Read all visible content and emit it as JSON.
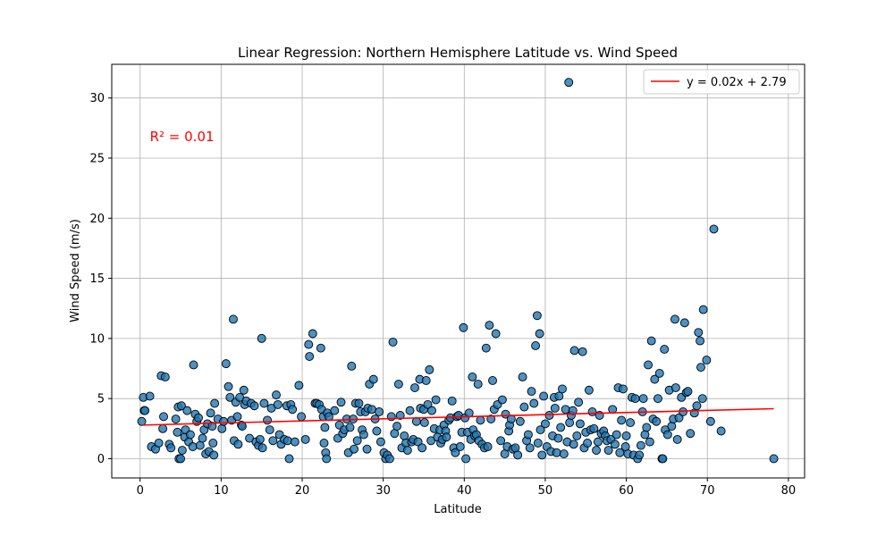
{
  "chart_data": {
    "type": "scatter",
    "title": "Linear Regression: Northern Hemisphere Latitude vs. Wind Speed",
    "xlabel": "Latitude",
    "ylabel": "Wind Speed (m/s)",
    "xlim": [
      -3.5,
      82
    ],
    "ylim": [
      -1.6,
      32.8
    ],
    "xticks": [
      0,
      10,
      20,
      30,
      40,
      50,
      60,
      70,
      80
    ],
    "yticks": [
      0,
      5,
      10,
      15,
      20,
      25,
      30
    ],
    "grid": true,
    "legend": {
      "position": "top-right",
      "entries": [
        "y = 0.02x + 2.79"
      ]
    },
    "annotation": {
      "text": "R² = 0.01",
      "x": 1.2,
      "y": 26.4,
      "color": "#ff0000"
    },
    "regression": {
      "slope": 0.0175,
      "intercept": 2.79,
      "x_range": [
        0.2,
        78.2
      ],
      "color": "#ff0000"
    },
    "colors": {
      "point_fill": "#1f77b4",
      "point_edge": "#000000",
      "line": "#ff0000",
      "grid": "#b0b0b0"
    },
    "points": [
      [
        0.2,
        3.1
      ],
      [
        0.4,
        5.1
      ],
      [
        0.5,
        4.0
      ],
      [
        0.6,
        4.0
      ],
      [
        1.2,
        5.2
      ],
      [
        1.4,
        1.0
      ],
      [
        1.9,
        0.8
      ],
      [
        2.3,
        1.3
      ],
      [
        2.6,
        6.9
      ],
      [
        2.8,
        2.5
      ],
      [
        2.9,
        3.5
      ],
      [
        3.1,
        6.8
      ],
      [
        3.6,
        1.2
      ],
      [
        3.8,
        0.9
      ],
      [
        4.4,
        3.3
      ],
      [
        4.6,
        2.2
      ],
      [
        4.7,
        4.3
      ],
      [
        4.8,
        0.0
      ],
      [
        5.0,
        0.0
      ],
      [
        5.1,
        4.4
      ],
      [
        5.2,
        0.7
      ],
      [
        5.5,
        1.8
      ],
      [
        5.6,
        2.4
      ],
      [
        5.8,
        4.0
      ],
      [
        6.0,
        1.4
      ],
      [
        6.2,
        2.0
      ],
      [
        6.5,
        1.0
      ],
      [
        6.6,
        7.8
      ],
      [
        6.8,
        3.7
      ],
      [
        7.0,
        3.1
      ],
      [
        7.2,
        3.4
      ],
      [
        7.4,
        1.1
      ],
      [
        7.7,
        1.7
      ],
      [
        7.9,
        2.4
      ],
      [
        8.1,
        0.4
      ],
      [
        8.3,
        2.9
      ],
      [
        8.5,
        0.6
      ],
      [
        8.7,
        3.8
      ],
      [
        8.9,
        2.7
      ],
      [
        9.0,
        1.3
      ],
      [
        9.1,
        0.3
      ],
      [
        9.2,
        4.6
      ],
      [
        9.6,
        3.3
      ],
      [
        10.1,
        2.5
      ],
      [
        10.3,
        3.1
      ],
      [
        10.6,
        7.9
      ],
      [
        10.9,
        6.0
      ],
      [
        11.1,
        5.1
      ],
      [
        11.3,
        3.2
      ],
      [
        11.5,
        11.6
      ],
      [
        11.6,
        1.5
      ],
      [
        11.8,
        4.7
      ],
      [
        12.0,
        3.5
      ],
      [
        12.1,
        1.2
      ],
      [
        12.3,
        5.1
      ],
      [
        12.5,
        2.8
      ],
      [
        12.6,
        2.7
      ],
      [
        12.8,
        5.7
      ],
      [
        12.9,
        4.5
      ],
      [
        13.1,
        4.8
      ],
      [
        13.5,
        1.7
      ],
      [
        13.7,
        4.6
      ],
      [
        14.1,
        4.4
      ],
      [
        14.3,
        1.4
      ],
      [
        14.6,
        1.1
      ],
      [
        14.8,
        1.6
      ],
      [
        15.0,
        10.0
      ],
      [
        15.1,
        0.9
      ],
      [
        15.3,
        4.6
      ],
      [
        15.7,
        3.2
      ],
      [
        16.0,
        2.4
      ],
      [
        16.2,
        4.2
      ],
      [
        16.4,
        1.5
      ],
      [
        16.8,
        5.3
      ],
      [
        17.0,
        4.5
      ],
      [
        17.2,
        2.0
      ],
      [
        17.4,
        1.2
      ],
      [
        17.8,
        1.6
      ],
      [
        18.1,
        4.4
      ],
      [
        18.2,
        1.5
      ],
      [
        18.4,
        0.0
      ],
      [
        18.6,
        4.5
      ],
      [
        18.8,
        4.1
      ],
      [
        19.1,
        1.4
      ],
      [
        19.6,
        6.1
      ],
      [
        19.9,
        3.5
      ],
      [
        20.4,
        1.6
      ],
      [
        20.8,
        9.5
      ],
      [
        20.9,
        8.5
      ],
      [
        21.3,
        10.4
      ],
      [
        21.6,
        4.6
      ],
      [
        21.8,
        4.6
      ],
      [
        22.1,
        4.5
      ],
      [
        22.3,
        9.2
      ],
      [
        22.4,
        4.1
      ],
      [
        22.6,
        3.5
      ],
      [
        22.7,
        1.3
      ],
      [
        22.8,
        2.6
      ],
      [
        22.9,
        0.5
      ],
      [
        23.0,
        0.0
      ],
      [
        23.1,
        3.8
      ],
      [
        23.3,
        3.5
      ],
      [
        24.0,
        4.0
      ],
      [
        24.4,
        1.7
      ],
      [
        24.6,
        2.8
      ],
      [
        24.8,
        4.7
      ],
      [
        25.0,
        2.1
      ],
      [
        25.2,
        2.4
      ],
      [
        25.5,
        3.3
      ],
      [
        25.7,
        0.5
      ],
      [
        25.9,
        2.6
      ],
      [
        26.1,
        7.7
      ],
      [
        26.3,
        3.3
      ],
      [
        26.4,
        0.8
      ],
      [
        26.6,
        4.6
      ],
      [
        26.8,
        1.5
      ],
      [
        27.0,
        4.6
      ],
      [
        27.2,
        3.9
      ],
      [
        27.4,
        2.4
      ],
      [
        27.6,
        2.0
      ],
      [
        27.8,
        3.9
      ],
      [
        28.0,
        0.8
      ],
      [
        28.1,
        4.2
      ],
      [
        28.3,
        6.2
      ],
      [
        28.6,
        4.1
      ],
      [
        28.8,
        6.6
      ],
      [
        29.0,
        3.3
      ],
      [
        29.2,
        2.3
      ],
      [
        29.5,
        3.9
      ],
      [
        29.7,
        1.4
      ],
      [
        30.1,
        0.5
      ],
      [
        30.3,
        0.0
      ],
      [
        30.5,
        0.3
      ],
      [
        30.8,
        0.0
      ],
      [
        31.0,
        3.5
      ],
      [
        31.2,
        9.7
      ],
      [
        31.4,
        2.1
      ],
      [
        31.7,
        2.7
      ],
      [
        31.9,
        6.2
      ],
      [
        32.1,
        3.6
      ],
      [
        32.3,
        0.9
      ],
      [
        32.6,
        1.9
      ],
      [
        32.8,
        1.3
      ],
      [
        33.0,
        0.7
      ],
      [
        33.3,
        4.0
      ],
      [
        33.5,
        1.4
      ],
      [
        33.7,
        1.6
      ],
      [
        33.9,
        5.9
      ],
      [
        34.1,
        3.1
      ],
      [
        34.3,
        1.4
      ],
      [
        34.5,
        6.6
      ],
      [
        34.6,
        4.2
      ],
      [
        34.8,
        0.9
      ],
      [
        35.0,
        4.1
      ],
      [
        35.1,
        3.0
      ],
      [
        35.3,
        6.5
      ],
      [
        35.5,
        4.5
      ],
      [
        35.7,
        7.4
      ],
      [
        35.9,
        1.5
      ],
      [
        36.0,
        4.0
      ],
      [
        36.3,
        2.5
      ],
      [
        36.5,
        4.9
      ],
      [
        36.7,
        1.8
      ],
      [
        37.0,
        2.4
      ],
      [
        37.1,
        1.3
      ],
      [
        37.3,
        1.6
      ],
      [
        37.5,
        2.8
      ],
      [
        37.7,
        2.3
      ],
      [
        37.8,
        1.8
      ],
      [
        38.1,
        3.2
      ],
      [
        38.3,
        3.4
      ],
      [
        38.5,
        4.8
      ],
      [
        38.7,
        0.9
      ],
      [
        38.9,
        0.5
      ],
      [
        39.1,
        3.5
      ],
      [
        39.3,
        3.6
      ],
      [
        39.5,
        1.0
      ],
      [
        39.7,
        2.2
      ],
      [
        39.9,
        10.9
      ],
      [
        40.1,
        3.4
      ],
      [
        40.2,
        0.0
      ],
      [
        40.4,
        2.2
      ],
      [
        40.6,
        3.8
      ],
      [
        40.8,
        1.6
      ],
      [
        41.0,
        6.8
      ],
      [
        41.1,
        2.4
      ],
      [
        41.3,
        1.9
      ],
      [
        41.5,
        2.0
      ],
      [
        41.7,
        6.2
      ],
      [
        41.8,
        1.5
      ],
      [
        42.0,
        3.2
      ],
      [
        42.2,
        1.2
      ],
      [
        42.5,
        0.9
      ],
      [
        42.7,
        9.2
      ],
      [
        42.9,
        1.0
      ],
      [
        43.1,
        11.1
      ],
      [
        43.3,
        3.3
      ],
      [
        43.5,
        6.5
      ],
      [
        43.7,
        4.1
      ],
      [
        43.9,
        10.4
      ],
      [
        44.1,
        4.5
      ],
      [
        44.5,
        1.5
      ],
      [
        44.7,
        4.9
      ],
      [
        45.0,
        0.4
      ],
      [
        45.1,
        3.7
      ],
      [
        45.3,
        1.0
      ],
      [
        45.5,
        2.3
      ],
      [
        45.6,
        2.8
      ],
      [
        45.8,
        3.3
      ],
      [
        46.0,
        0.8
      ],
      [
        46.3,
        0.9
      ],
      [
        46.6,
        0.3
      ],
      [
        46.9,
        3.1
      ],
      [
        47.2,
        6.8
      ],
      [
        47.4,
        4.3
      ],
      [
        47.7,
        1.5
      ],
      [
        47.9,
        2.0
      ],
      [
        48.1,
        0.9
      ],
      [
        48.3,
        5.6
      ],
      [
        48.6,
        4.6
      ],
      [
        48.8,
        9.4
      ],
      [
        49.0,
        11.9
      ],
      [
        49.1,
        1.3
      ],
      [
        49.3,
        10.4
      ],
      [
        49.4,
        2.4
      ],
      [
        49.6,
        0.3
      ],
      [
        49.8,
        5.2
      ],
      [
        50.0,
        2.9
      ],
      [
        50.2,
        1.0
      ],
      [
        50.5,
        3.6
      ],
      [
        50.7,
        0.6
      ],
      [
        50.9,
        1.9
      ],
      [
        51.1,
        5.1
      ],
      [
        51.2,
        4.2
      ],
      [
        51.4,
        0.5
      ],
      [
        51.6,
        1.7
      ],
      [
        51.7,
        5.2
      ],
      [
        51.9,
        2.6
      ],
      [
        52.1,
        5.8
      ],
      [
        52.3,
        0.4
      ],
      [
        52.5,
        4.1
      ],
      [
        52.7,
        1.4
      ],
      [
        52.9,
        31.3
      ],
      [
        53.0,
        3.0
      ],
      [
        53.2,
        3.6
      ],
      [
        53.4,
        4.0
      ],
      [
        53.5,
        1.2
      ],
      [
        53.6,
        9.0
      ],
      [
        53.9,
        1.9
      ],
      [
        54.1,
        4.7
      ],
      [
        54.3,
        2.9
      ],
      [
        54.6,
        8.9
      ],
      [
        54.8,
        0.9
      ],
      [
        55.0,
        2.2
      ],
      [
        55.2,
        1.3
      ],
      [
        55.4,
        5.7
      ],
      [
        55.6,
        2.4
      ],
      [
        55.8,
        3.9
      ],
      [
        56.0,
        2.5
      ],
      [
        56.3,
        0.7
      ],
      [
        56.5,
        1.4
      ],
      [
        56.7,
        3.6
      ],
      [
        56.9,
        2.1
      ],
      [
        57.2,
        2.3
      ],
      [
        57.4,
        1.9
      ],
      [
        57.6,
        1.5
      ],
      [
        57.8,
        0.7
      ],
      [
        58.1,
        1.6
      ],
      [
        58.3,
        4.1
      ],
      [
        58.6,
        1.2
      ],
      [
        58.8,
        2.0
      ],
      [
        59.0,
        5.9
      ],
      [
        59.2,
        0.5
      ],
      [
        59.4,
        3.2
      ],
      [
        59.6,
        5.8
      ],
      [
        59.9,
        1.0
      ],
      [
        60.0,
        1.9
      ],
      [
        60.2,
        0.4
      ],
      [
        60.5,
        3.0
      ],
      [
        60.7,
        5.1
      ],
      [
        60.9,
        0.3
      ],
      [
        61.1,
        5.0
      ],
      [
        61.4,
        0.0
      ],
      [
        61.6,
        0.3
      ],
      [
        61.8,
        1.1
      ],
      [
        62.0,
        3.9
      ],
      [
        62.1,
        5.0
      ],
      [
        62.3,
        2.0
      ],
      [
        62.5,
        2.6
      ],
      [
        62.7,
        7.8
      ],
      [
        62.9,
        1.4
      ],
      [
        63.1,
        9.8
      ],
      [
        63.3,
        3.3
      ],
      [
        63.5,
        6.6
      ],
      [
        63.7,
        3.1
      ],
      [
        63.9,
        5.0
      ],
      [
        64.1,
        7.1
      ],
      [
        64.4,
        0.0
      ],
      [
        64.5,
        0.0
      ],
      [
        64.7,
        9.1
      ],
      [
        64.8,
        2.4
      ],
      [
        65.1,
        2.0
      ],
      [
        65.3,
        5.7
      ],
      [
        65.6,
        2.7
      ],
      [
        65.8,
        3.3
      ],
      [
        66.0,
        11.6
      ],
      [
        66.1,
        5.9
      ],
      [
        66.3,
        1.6
      ],
      [
        66.5,
        3.4
      ],
      [
        66.8,
        5.1
      ],
      [
        67.0,
        3.9
      ],
      [
        67.2,
        11.3
      ],
      [
        67.4,
        5.5
      ],
      [
        67.6,
        5.6
      ],
      [
        67.9,
        2.1
      ],
      [
        68.4,
        3.8
      ],
      [
        68.7,
        4.4
      ],
      [
        68.9,
        10.5
      ],
      [
        69.1,
        9.8
      ],
      [
        69.2,
        7.6
      ],
      [
        69.4,
        5.0
      ],
      [
        69.5,
        12.4
      ],
      [
        69.9,
        8.2
      ],
      [
        70.4,
        3.1
      ],
      [
        70.8,
        19.1
      ],
      [
        71.7,
        2.3
      ],
      [
        78.2,
        0.0
      ]
    ]
  }
}
